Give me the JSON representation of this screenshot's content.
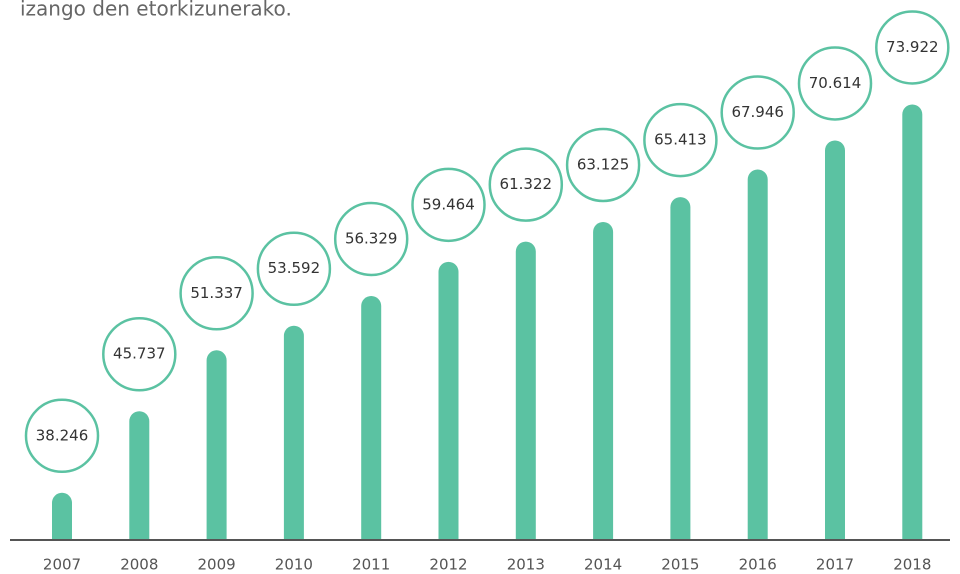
{
  "chart_data": {
    "type": "bar",
    "subtitle": "izango den etorkizunerako.",
    "categories": [
      "2007",
      "2008",
      "2009",
      "2010",
      "2011",
      "2012",
      "2013",
      "2014",
      "2015",
      "2016",
      "2017",
      "2018"
    ],
    "values": [
      38246,
      45737,
      51337,
      53592,
      56329,
      59464,
      61322,
      63125,
      65413,
      67946,
      70614,
      73922
    ],
    "value_labels": [
      "38.246",
      "45.737",
      "51.337",
      "53.592",
      "56.329",
      "59.464",
      "61.322",
      "63.125",
      "65.413",
      "67.946",
      "70.614",
      "73.922"
    ],
    "color": "#5bc2a2",
    "ylim": [
      34000,
      82600
    ]
  }
}
